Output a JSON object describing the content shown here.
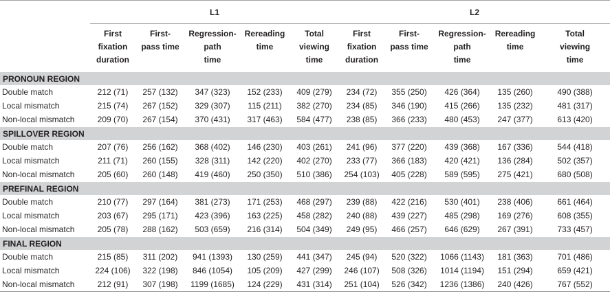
{
  "group_headers": {
    "l1": "L1",
    "l2": "L2"
  },
  "columns": [
    "First fixation duration",
    "First-pass time",
    "Regression-path time",
    "Rereading time",
    "Total viewing time"
  ],
  "regions": [
    {
      "name": "PRONOUN REGION",
      "rows": [
        {
          "condition": "Double match",
          "cells": [
            "212 (71)",
            "257 (132)",
            "347 (323)",
            "152 (233)",
            "409 (279)",
            "234 (72)",
            "355 (250)",
            "426 (364)",
            "135 (260)",
            "490 (388)"
          ]
        },
        {
          "condition": "Local mismatch",
          "cells": [
            "215 (74)",
            "267 (152)",
            "329 (307)",
            "115 (211)",
            "382 (270)",
            "234 (85)",
            "346 (190)",
            "415 (266)",
            "135 (232)",
            "481 (317)"
          ]
        },
        {
          "condition": "Non-local mismatch",
          "cells": [
            "209 (70)",
            "267 (154)",
            "370 (431)",
            "317 (463)",
            "584 (477)",
            "238 (85)",
            "366 (233)",
            "480 (453)",
            "247 (377)",
            "613 (420)"
          ]
        }
      ]
    },
    {
      "name": "SPILLOVER REGION",
      "rows": [
        {
          "condition": "Double match",
          "cells": [
            "207 (76)",
            "256 (162)",
            "368 (402)",
            "146 (230)",
            "403 (261)",
            "241 (96)",
            "377 (220)",
            "439 (368)",
            "167 (336)",
            "544 (418)"
          ]
        },
        {
          "condition": "Local mismatch",
          "cells": [
            "211 (71)",
            "260 (155)",
            "328 (311)",
            "142 (220)",
            "402 (270)",
            "233 (77)",
            "366 (183)",
            "420 (421)",
            "136 (284)",
            "502 (357)"
          ]
        },
        {
          "condition": "Non-local mismatch",
          "cells": [
            "205 (60)",
            "260 (148)",
            "419 (460)",
            "250 (350)",
            "510 (386)",
            "254 (103)",
            "405 (228)",
            "589 (595)",
            "275 (421)",
            "680 (508)"
          ]
        }
      ]
    },
    {
      "name": "PREFINAL REGION",
      "rows": [
        {
          "condition": "Double match",
          "cells": [
            "210 (77)",
            "297 (164)",
            "381 (273)",
            "171 (253)",
            "468 (297)",
            "239 (88)",
            "422 (216)",
            "530 (401)",
            "238 (406)",
            "661 (464)"
          ]
        },
        {
          "condition": "Local mismatch",
          "cells": [
            "203 (67)",
            "295 (171)",
            "423 (396)",
            "163 (225)",
            "458 (282)",
            "240 (88)",
            "439 (227)",
            "485 (298)",
            "169 (276)",
            "608 (355)"
          ]
        },
        {
          "condition": "Non-local mismatch",
          "cells": [
            "205 (78)",
            "288 (162)",
            "503 (659)",
            "216 (314)",
            "504 (349)",
            "249 (95)",
            "466 (257)",
            "646 (629)",
            "267 (391)",
            "733 (457)"
          ]
        }
      ]
    },
    {
      "name": "FINAL REGION",
      "rows": [
        {
          "condition": "Double match",
          "cells": [
            "215 (85)",
            "311 (202)",
            "941 (1393)",
            "130 (259)",
            "441 (347)",
            "245 (94)",
            "520 (322)",
            "1066 (1143)",
            "181 (363)",
            "701 (486)"
          ]
        },
        {
          "condition": "Local mismatch",
          "cells": [
            "224 (106)",
            "322 (198)",
            "846 (1054)",
            "105 (209)",
            "427 (299)",
            "246 (107)",
            "508 (326)",
            "1014 (1194)",
            "151 (294)",
            "659 (421)"
          ]
        },
        {
          "condition": "Non-local mismatch",
          "cells": [
            "212 (91)",
            "307 (198)",
            "1199 (1685)",
            "124 (229)",
            "431 (314)",
            "251 (104)",
            "526 (342)",
            "1236 (1386)",
            "240 (426)",
            "767 (552)"
          ]
        }
      ]
    }
  ]
}
